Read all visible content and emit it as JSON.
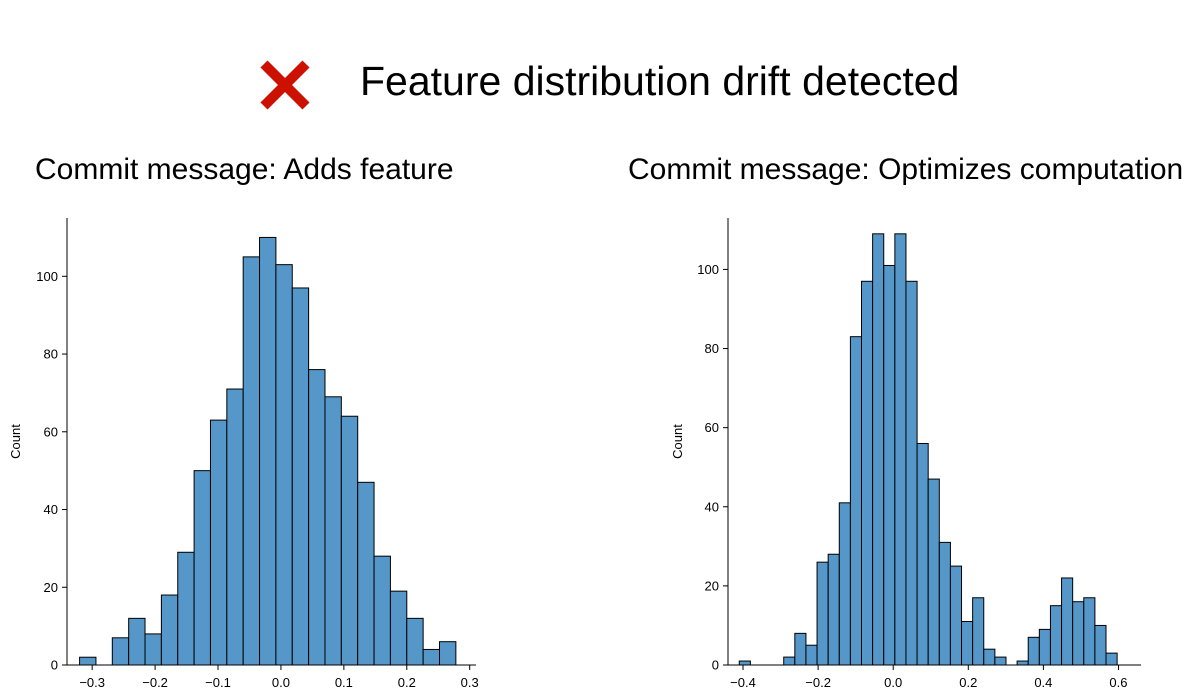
{
  "header": {
    "status_icon": "fail-x-icon",
    "status_color": "#cc1100",
    "title": "Feature distribution drift detected"
  },
  "bar_color": "#5597c8",
  "chart_data": [
    {
      "type": "bar",
      "title": "Commit message: Adds feature",
      "xlabel": "",
      "ylabel": "Count",
      "xlim": [
        -0.34,
        0.31
      ],
      "ylim": [
        0,
        115
      ],
      "xticks": [
        -0.3,
        -0.2,
        -0.1,
        0.0,
        0.1,
        0.2,
        0.3
      ],
      "xtick_labels": [
        "−0.3",
        "−0.2",
        "−0.1",
        "0.0",
        "0.1",
        "0.2",
        "0.3"
      ],
      "yticks": [
        0,
        20,
        40,
        60,
        80,
        100
      ],
      "bin_start": -0.32,
      "bin_width": 0.026,
      "values": [
        2,
        0,
        7,
        12,
        8,
        18,
        29,
        50,
        63,
        71,
        105,
        110,
        103,
        97,
        76,
        69,
        64,
        47,
        28,
        19,
        12,
        4,
        6
      ]
    },
    {
      "type": "bar",
      "title": "Commit message: Optimizes computation",
      "xlabel": "",
      "ylabel": "Count",
      "xlim": [
        -0.44,
        0.66
      ],
      "ylim": [
        0,
        113
      ],
      "xticks": [
        -0.4,
        -0.2,
        0.0,
        0.2,
        0.4,
        0.6
      ],
      "xtick_labels": [
        "−0.4",
        "−0.2",
        "0.0",
        "0.2",
        "0.4",
        "0.6"
      ],
      "yticks": [
        0,
        20,
        40,
        60,
        80,
        100
      ],
      "bin_start": -0.41,
      "bin_width": 0.0296,
      "values": [
        1,
        0,
        0,
        0,
        2,
        8,
        5,
        26,
        28,
        41,
        83,
        97,
        109,
        101,
        109,
        97,
        56,
        47,
        31,
        25,
        11,
        17,
        4,
        2,
        0,
        1,
        7,
        9,
        15,
        22,
        16,
        17,
        10,
        3
      ]
    }
  ]
}
